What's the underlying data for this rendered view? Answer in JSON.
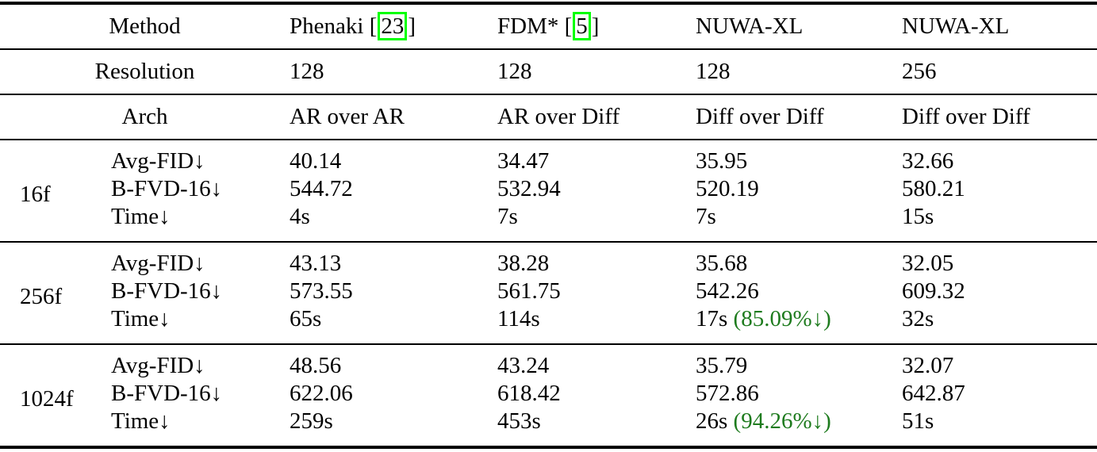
{
  "colors": {
    "citation_box_green": "#00ff00",
    "reduction_note_green": "#1e7b1e",
    "text": "#000000",
    "background": "#ffffff",
    "rule": "#000000"
  },
  "table": {
    "header_rows": [
      {
        "label": "Method",
        "cells": [
          {
            "text": "Phenaki",
            "cite": "23"
          },
          {
            "text": "FDM*",
            "cite": "5"
          },
          {
            "text": "NUWA-XL"
          },
          {
            "text": "NUWA-XL"
          }
        ]
      },
      {
        "label": "Resolution",
        "cells": [
          {
            "text": "128"
          },
          {
            "text": "128"
          },
          {
            "text": "128"
          },
          {
            "text": "256"
          }
        ]
      },
      {
        "label": "Arch",
        "cells": [
          {
            "text": "AR over AR"
          },
          {
            "text": "AR over Diff"
          },
          {
            "text": "Diff over Diff"
          },
          {
            "text": "Diff over Diff"
          }
        ]
      }
    ],
    "groups": [
      {
        "name": "16f",
        "metrics": [
          {
            "label": "Avg-FID↓",
            "cells": [
              {
                "text": "40.14"
              },
              {
                "text": "34.47"
              },
              {
                "text": "35.95"
              },
              {
                "text": "32.66"
              }
            ]
          },
          {
            "label": "B-FVD-16↓",
            "cells": [
              {
                "text": "544.72"
              },
              {
                "text": "532.94"
              },
              {
                "text": "520.19"
              },
              {
                "text": "580.21"
              }
            ]
          },
          {
            "label": "Time↓",
            "cells": [
              {
                "text": "4s"
              },
              {
                "text": "7s"
              },
              {
                "text": "7s"
              },
              {
                "text": "15s"
              }
            ]
          }
        ]
      },
      {
        "name": "256f",
        "metrics": [
          {
            "label": "Avg-FID↓",
            "cells": [
              {
                "text": "43.13"
              },
              {
                "text": "38.28"
              },
              {
                "text": "35.68"
              },
              {
                "text": "32.05"
              }
            ]
          },
          {
            "label": "B-FVD-16↓",
            "cells": [
              {
                "text": "573.55"
              },
              {
                "text": "561.75"
              },
              {
                "text": "542.26"
              },
              {
                "text": "609.32"
              }
            ]
          },
          {
            "label": "Time↓",
            "cells": [
              {
                "text": "65s"
              },
              {
                "text": "114s"
              },
              {
                "text": "17s",
                "note": "(85.09%↓)"
              },
              {
                "text": "32s"
              }
            ]
          }
        ]
      },
      {
        "name": "1024f",
        "metrics": [
          {
            "label": "Avg-FID↓",
            "cells": [
              {
                "text": "48.56"
              },
              {
                "text": "43.24"
              },
              {
                "text": "35.79"
              },
              {
                "text": "32.07"
              }
            ]
          },
          {
            "label": "B-FVD-16↓",
            "cells": [
              {
                "text": "622.06"
              },
              {
                "text": "618.42"
              },
              {
                "text": "572.86"
              },
              {
                "text": "642.87"
              }
            ]
          },
          {
            "label": "Time↓",
            "cells": [
              {
                "text": "259s"
              },
              {
                "text": "453s"
              },
              {
                "text": "26s",
                "note": "(94.26%↓)"
              },
              {
                "text": "51s"
              }
            ]
          }
        ]
      }
    ]
  }
}
